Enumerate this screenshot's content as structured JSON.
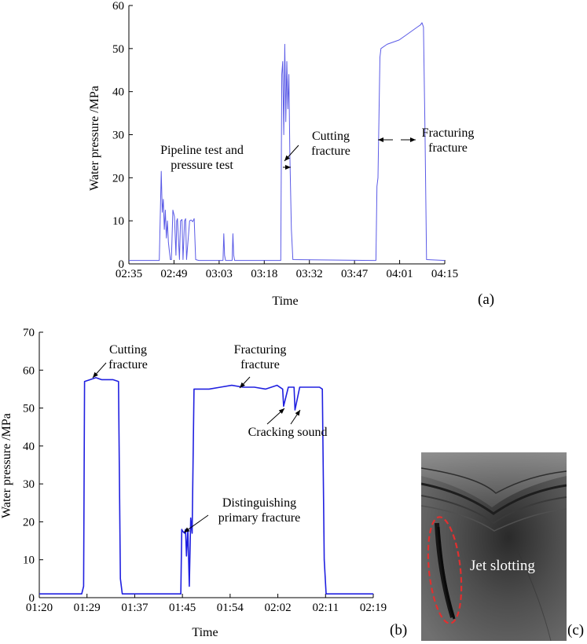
{
  "chart_data": [
    {
      "type": "line",
      "panel_label": "(a)",
      "xlabel": "Time",
      "ylabel": "Water pressure /MPa",
      "x_ticks": [
        "02:35",
        "02:49",
        "03:03",
        "03:18",
        "03:32",
        "03:47",
        "04:01",
        "04:15"
      ],
      "y_ticks": [
        0,
        10,
        20,
        30,
        40,
        50,
        60
      ],
      "ylim": [
        0,
        60
      ],
      "xlim": [
        "02:35",
        "04:19"
      ],
      "grid": false,
      "line_color": "#5a5ae6",
      "series": [
        {
          "x": [
            "02:35",
            "02:45",
            "02:45:40",
            "02:46",
            "02:46:20",
            "02:46:40",
            "02:47",
            "02:47:20",
            "02:47:40",
            "02:48",
            "02:48:20",
            "02:48:40",
            "02:49",
            "02:49:30",
            "02:50",
            "02:50:30",
            "02:50:45",
            "02:51",
            "02:51:40",
            "02:52",
            "02:52:30",
            "02:52:50",
            "02:53:20",
            "02:53:40",
            "02:54",
            "02:55",
            "02:55:30",
            "02:56",
            "02:56:30",
            "02:57",
            "02:58",
            "03:06",
            "03:06:15",
            "03:06:30",
            "03:06:50",
            "03:07",
            "03:08",
            "03:09",
            "03:09:15",
            "03:09:30",
            "03:09:50",
            "03:10",
            "03:24",
            "03:25",
            "03:25:20",
            "03:25:40",
            "03:26",
            "03:26:20",
            "03:26:40",
            "03:27",
            "03:27:20",
            "03:27:40",
            "03:28",
            "03:28:30",
            "03:29",
            "03:55",
            "03:56",
            "03:56:20",
            "03:56:40",
            "03:57",
            "03:57:40",
            "03:58",
            "04:00",
            "04:02",
            "04:04",
            "04:06",
            "04:08",
            "04:10",
            "04:11",
            "04:11:30",
            "04:12",
            "04:12:30",
            "04:13",
            "04:19"
          ],
          "y": [
            0.8,
            0.8,
            21.5,
            12,
            15,
            8,
            12.5,
            6,
            10,
            5,
            3,
            1,
            1,
            12.5,
            11,
            2,
            10,
            10.5,
            1,
            10,
            10.3,
            1,
            10,
            10.5,
            1,
            10,
            10.2,
            9.8,
            10.5,
            1,
            0.8,
            0.8,
            7,
            2,
            0.8,
            0.8,
            0.8,
            0.8,
            7,
            2,
            0.8,
            0.8,
            0.8,
            0.8,
            44,
            47,
            30,
            51,
            33,
            47,
            36,
            44,
            25,
            8,
            1,
            0.8,
            0.8,
            0.8,
            18,
            20,
            48,
            50,
            51,
            51.5,
            52,
            53,
            54,
            55,
            55.5,
            56,
            55,
            30,
            1,
            0.8
          ]
        }
      ],
      "annotations": [
        "Pipeline test and\npressure test",
        "Cutting\nfracture",
        "Fracturing\nfracture"
      ]
    },
    {
      "type": "line",
      "panel_label": "(b)",
      "xlabel": "Time",
      "ylabel": "Water pressure /MPa",
      "x_ticks": [
        "01:20",
        "01:29",
        "01:37",
        "01:45",
        "01:54",
        "02:02",
        "02:11",
        "02:19"
      ],
      "y_ticks": [
        0,
        10,
        20,
        30,
        40,
        50,
        60,
        70
      ],
      "ylim": [
        0,
        70
      ],
      "xlim": [
        "01:20",
        "02:19"
      ],
      "grid": false,
      "line_color": "#2020e0",
      "series": [
        {
          "x": [
            "01:20",
            "01:27",
            "01:27:30",
            "01:27:50",
            "01:28",
            "01:29",
            "01:30",
            "01:31",
            "01:32",
            "01:33",
            "01:34",
            "01:34:20",
            "01:34:40",
            "01:35",
            "01:36",
            "01:45",
            "01:45:10",
            "01:45:20",
            "01:45:40",
            "01:45:50",
            "01:46",
            "01:46:15",
            "01:46:30",
            "01:46:45",
            "01:47",
            "01:47:20",
            "01:47:40",
            "01:48",
            "01:50",
            "01:52",
            "01:54",
            "01:56",
            "01:58",
            "02:00",
            "02:02",
            "02:03",
            "02:03:10",
            "02:04",
            "02:05",
            "02:05:10",
            "02:06",
            "02:08",
            "02:09",
            "02:09:30",
            "02:10",
            "02:10:20",
            "02:10:40",
            "02:11",
            "02:19"
          ],
          "y": [
            1,
            1,
            1,
            3,
            57,
            57.5,
            58,
            57.5,
            57.5,
            57.5,
            57,
            5,
            1,
            1,
            1,
            1,
            18,
            17.5,
            17,
            18,
            11,
            18,
            3,
            21,
            17,
            55,
            55,
            55,
            55,
            55.5,
            56,
            55.5,
            55.5,
            55,
            56,
            55,
            50.5,
            55.5,
            55.5,
            49.5,
            55.5,
            55.5,
            55.5,
            55.5,
            55,
            10,
            1,
            1,
            1
          ]
        }
      ],
      "annotations": [
        "Cutting\nfracture",
        "Fracturing\nfracture",
        "Cracking sound",
        "Distinguishing\nprimary fracture"
      ]
    }
  ],
  "photo": {
    "panel_label": "(c)",
    "label": "Jet slotting",
    "outline_color": "#e03030"
  }
}
